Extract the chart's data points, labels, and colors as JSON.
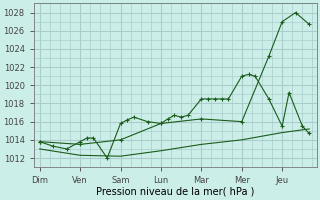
{
  "bg_color": "#cceee8",
  "grid_color": "#aacccc",
  "line_color": "#1a5c1a",
  "xlabel": "Pression niveau de la mer( hPa )",
  "ylim": [
    1011.0,
    1029.0
  ],
  "yticks": [
    1012,
    1014,
    1016,
    1018,
    1020,
    1022,
    1024,
    1026,
    1028
  ],
  "x_labels": [
    "Dim",
    "Ven",
    "Sam",
    "Lun",
    "Mar",
    "Mer",
    "Jeu"
  ],
  "x_tick_pos": [
    0,
    1,
    2,
    3,
    4,
    5,
    6
  ],
  "series_detail": {
    "x": [
      0.0,
      0.33,
      0.67,
      1.0,
      1.17,
      1.33,
      1.67,
      2.0,
      2.17,
      2.33,
      2.67,
      3.0,
      3.17,
      3.33,
      3.5,
      3.67,
      4.0,
      4.17,
      4.33,
      4.5,
      4.67,
      5.0,
      5.17,
      5.33,
      5.67,
      6.0,
      6.17,
      6.5,
      6.67
    ],
    "y": [
      1013.8,
      1013.3,
      1013.0,
      1013.8,
      1014.2,
      1014.2,
      1012.0,
      1015.8,
      1016.2,
      1016.5,
      1016.0,
      1015.8,
      1016.3,
      1016.7,
      1016.5,
      1016.7,
      1018.5,
      1018.5,
      1018.5,
      1018.5,
      1018.5,
      1021.0,
      1021.2,
      1021.0,
      1018.5,
      1015.5,
      1019.2,
      1015.5,
      1014.7
    ]
  },
  "series_upper": {
    "x": [
      0.0,
      1.0,
      2.0,
      3.0,
      4.0,
      5.0,
      5.67,
      6.0,
      6.33,
      6.67
    ],
    "y": [
      1013.8,
      1013.5,
      1014.0,
      1015.8,
      1016.3,
      1016.0,
      1023.2,
      1027.0,
      1028.0,
      1026.7
    ]
  },
  "series_lower": {
    "x": [
      0.0,
      1.0,
      2.0,
      3.0,
      4.0,
      5.0,
      6.0,
      6.67
    ],
    "y": [
      1013.0,
      1012.3,
      1012.2,
      1012.8,
      1013.5,
      1014.0,
      1014.8,
      1015.2
    ]
  }
}
